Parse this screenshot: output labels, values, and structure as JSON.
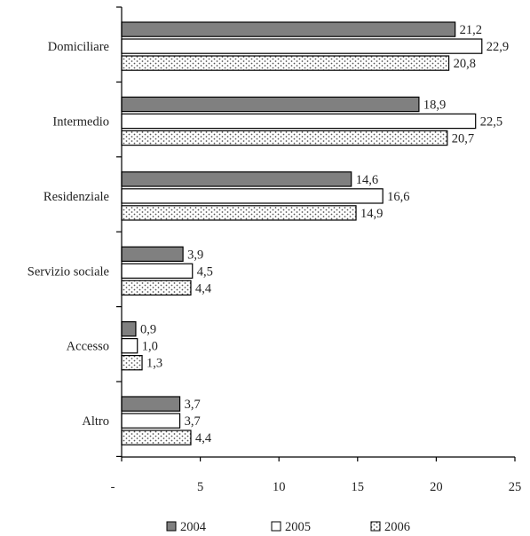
{
  "chart_data": {
    "type": "bar",
    "orientation": "horizontal",
    "categories": [
      "Domiciliare",
      "Intermedio",
      "Residenziale",
      "Servizio sociale",
      "Accesso",
      "Altro"
    ],
    "series": [
      {
        "name": "2004",
        "values": [
          21.2,
          18.9,
          14.6,
          3.9,
          0.9,
          3.7
        ],
        "fill": "#808080",
        "pattern": "solid"
      },
      {
        "name": "2005",
        "values": [
          22.9,
          22.5,
          16.6,
          4.5,
          1.0,
          3.7
        ],
        "fill": "#ffffff",
        "pattern": "solid"
      },
      {
        "name": "2006",
        "values": [
          20.8,
          20.7,
          14.9,
          4.4,
          1.3,
          4.4
        ],
        "fill": "#ffffff",
        "pattern": "dots"
      }
    ],
    "value_labels": [
      [
        "21,2",
        "18,9",
        "14,6",
        "3,9",
        "0,9",
        "3,7"
      ],
      [
        "22,9",
        "22,5",
        "16,6",
        "4,5",
        "1,0",
        "3,7"
      ],
      [
        "20,8",
        "20,7",
        "14,9",
        "4,4",
        "1,3",
        "4,4"
      ]
    ],
    "xlim": [
      0,
      25
    ],
    "x_ticks": [
      0,
      5,
      10,
      15,
      20,
      25
    ],
    "x_tick_labels": [
      "-",
      "5",
      "10",
      "15",
      "20",
      "25"
    ],
    "grid": false,
    "legend": "bottom",
    "title": "",
    "xlabel": "",
    "ylabel": ""
  }
}
